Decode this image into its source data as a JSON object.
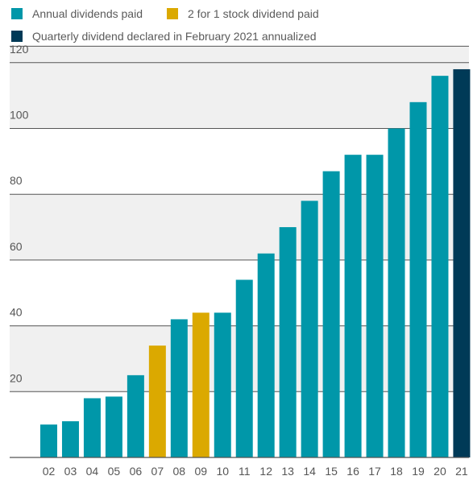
{
  "colors": {
    "annual": "#0097a9",
    "stock_dividend": "#dba900",
    "quarterly": "#003a57",
    "band": "#f0f0f0",
    "gridline": "#555555"
  },
  "legend": [
    {
      "label": "Annual dividends paid",
      "series": "annual"
    },
    {
      "label": "2 for 1 stock dividend paid",
      "series": "stock_dividend"
    },
    {
      "label": "Quarterly dividend declared in February 2021 annualized",
      "series": "quarterly"
    }
  ],
  "chart_data": {
    "type": "bar",
    "categories": [
      "02",
      "03",
      "04",
      "05",
      "06",
      "07",
      "08",
      "09",
      "10",
      "11",
      "12",
      "13",
      "14",
      "15",
      "16",
      "17",
      "18",
      "19",
      "20",
      "21"
    ],
    "values": [
      10,
      11,
      18,
      18.5,
      25,
      34,
      42,
      44,
      44,
      54,
      62,
      70,
      78,
      87,
      92,
      92,
      100,
      108,
      116,
      118
    ],
    "bar_series": [
      "annual",
      "annual",
      "annual",
      "annual",
      "annual",
      "stock_dividend",
      "annual",
      "stock_dividend",
      "annual",
      "annual",
      "annual",
      "annual",
      "annual",
      "annual",
      "annual",
      "annual",
      "annual",
      "annual",
      "annual",
      "quarterly"
    ],
    "yticks": [
      20,
      40,
      60,
      80,
      100,
      120
    ],
    "ylim": [
      0,
      125
    ],
    "title": "",
    "xlabel": "",
    "ylabel": "",
    "grid": true,
    "legend_position": "top-left"
  }
}
